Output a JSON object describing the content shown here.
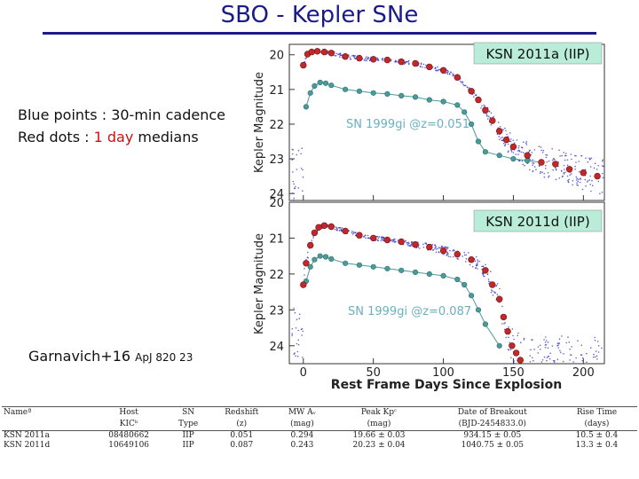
{
  "slide": {
    "title": "SBO - Kepler SNe",
    "note_blue": "Blue points : 30-min cadence",
    "note_red_prefix": "Red dots : ",
    "note_red_highlight": "1 day",
    "note_red_suffix": " medians",
    "citation_main": "Garnavich+16 ",
    "citation_ref": "ApJ 820 23"
  },
  "colors": {
    "title": "#1a1a8c",
    "red_dots": "#c0282a",
    "blue_points": "#3a3ac8",
    "comparison": "#4a9a9a",
    "comparison_label": "#6ab0c0",
    "label_box": "#b9ecd9"
  },
  "chart_data": [
    {
      "type": "scatter",
      "label": "KSN 2011a (IIP)",
      "comparison_label": "SN 1999gi @z=0.051",
      "ylabel": "Kepler Magnitude",
      "xlabel": "",
      "ylim": [
        24.2,
        19.7
      ],
      "xlim": [
        -10,
        215
      ],
      "yticks": [
        20,
        21,
        22,
        23,
        24
      ],
      "series": [
        {
          "name": "1 day medians",
          "x": [
            0,
            3,
            6,
            10,
            15,
            20,
            30,
            40,
            50,
            60,
            70,
            80,
            90,
            100,
            110,
            120,
            125,
            130,
            135,
            140,
            145,
            150,
            160,
            170,
            180,
            190,
            200,
            210
          ],
          "y": [
            20.3,
            19.98,
            19.92,
            19.9,
            19.92,
            19.95,
            20.05,
            20.1,
            20.13,
            20.15,
            20.2,
            20.25,
            20.35,
            20.45,
            20.65,
            21.05,
            21.3,
            21.6,
            21.9,
            22.2,
            22.45,
            22.65,
            22.9,
            23.1,
            23.15,
            23.3,
            23.4,
            23.5
          ]
        },
        {
          "name": "SN 1999gi",
          "x": [
            2,
            5,
            8,
            12,
            16,
            20,
            30,
            40,
            50,
            60,
            70,
            80,
            90,
            100,
            110,
            115,
            120,
            125,
            130,
            140,
            150,
            160,
            170
          ],
          "y": [
            21.5,
            21.1,
            20.9,
            20.8,
            20.82,
            20.88,
            21.0,
            21.05,
            21.1,
            21.13,
            21.18,
            21.22,
            21.3,
            21.35,
            21.45,
            21.65,
            22.0,
            22.5,
            22.8,
            22.9,
            23.0,
            23.05,
            23.1
          ]
        }
      ]
    },
    {
      "type": "scatter",
      "label": "KSN 2011d (IIP)",
      "comparison_label": "SN 1999gi @z=0.087",
      "ylabel": "Kepler Magnitude",
      "xlabel": "Rest Frame Days Since Explosion",
      "ylim": [
        24.5,
        20.0
      ],
      "xlim": [
        -10,
        215
      ],
      "xticks": [
        0,
        50,
        100,
        150,
        200
      ],
      "yticks": [
        20,
        21,
        22,
        23,
        24
      ],
      "series": [
        {
          "name": "1 day medians",
          "x": [
            0,
            2,
            5,
            8,
            11,
            15,
            20,
            30,
            40,
            50,
            60,
            70,
            80,
            90,
            100,
            110,
            120,
            130,
            135,
            140,
            143,
            146,
            149,
            152,
            155
          ],
          "y": [
            22.3,
            21.7,
            21.2,
            20.85,
            20.7,
            20.65,
            20.68,
            20.8,
            20.92,
            21.0,
            21.05,
            21.1,
            21.18,
            21.25,
            21.35,
            21.45,
            21.6,
            21.9,
            22.3,
            22.7,
            23.2,
            23.6,
            24.0,
            24.2,
            24.4
          ]
        },
        {
          "name": "SN 1999gi",
          "x": [
            2,
            5,
            8,
            12,
            16,
            20,
            30,
            40,
            50,
            60,
            70,
            80,
            90,
            100,
            110,
            115,
            120,
            125,
            130,
            140
          ],
          "y": [
            22.2,
            21.8,
            21.6,
            21.5,
            21.52,
            21.58,
            21.7,
            21.75,
            21.8,
            21.85,
            21.9,
            21.95,
            22.0,
            22.05,
            22.15,
            22.3,
            22.6,
            23.0,
            23.4,
            24.0
          ]
        }
      ]
    }
  ],
  "table": {
    "headers": [
      {
        "line1": "Nameª",
        "line2": ""
      },
      {
        "line1": "Host",
        "line2": "KICᵇ"
      },
      {
        "line1": "SN",
        "line2": "Type"
      },
      {
        "line1": "Redshift",
        "line2": "(z)"
      },
      {
        "line1": "MW Aᵥ",
        "line2": "(mag)"
      },
      {
        "line1": "Peak Kpᶜ",
        "line2": "(mag)"
      },
      {
        "line1": "Date of Breakout",
        "line2": "(BJD-2454833.0)"
      },
      {
        "line1": "Rise Time",
        "line2": "(days)"
      }
    ],
    "rows": [
      [
        "KSN 2011a",
        "08480662",
        "IIP",
        "0.051",
        "0.294",
        "19.66 ± 0.03",
        "934.15 ± 0.05",
        "10.5 ± 0.4"
      ],
      [
        "KSN 2011d",
        "10649106",
        "IIP",
        "0.087",
        "0.243",
        "20.23 ± 0.04",
        "1040.75 ± 0.05",
        "13.3 ± 0.4"
      ]
    ]
  }
}
